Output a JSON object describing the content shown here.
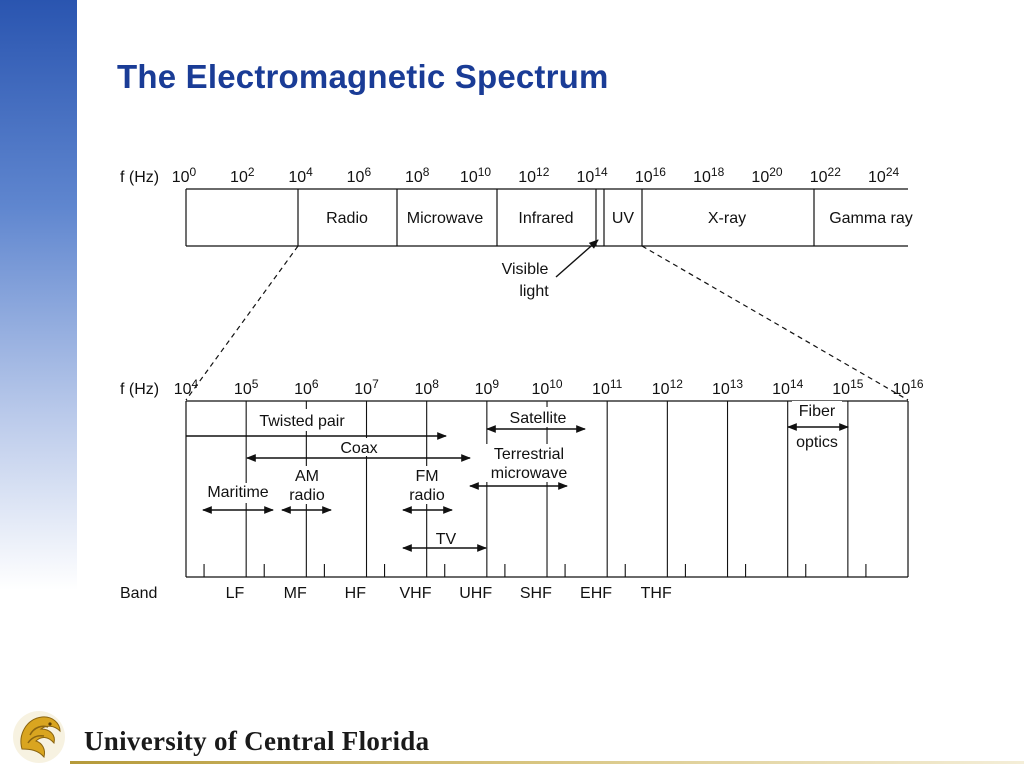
{
  "slide": {
    "title": "The Electromagnetic Spectrum"
  },
  "footer": {
    "institution": "University of Central Florida",
    "logo_icon": "pegasus-logo-icon"
  },
  "colors": {
    "title": "#1a3c96",
    "sidebar_top": "#2a55b0",
    "footer_rule": "#b59a3a",
    "logo_gold": "#d9a520"
  },
  "upper_scale": {
    "axis_label": "f (Hz)",
    "exponents": [
      "0",
      "2",
      "4",
      "6",
      "8",
      "10",
      "12",
      "14",
      "16",
      "18",
      "20",
      "22",
      "24"
    ],
    "regions": [
      "Radio",
      "Microwave",
      "Infrared",
      "UV",
      "X-ray",
      "Gamma ray"
    ],
    "visible_label_line1": "Visible",
    "visible_label_line2": "light"
  },
  "lower_scale": {
    "axis_label": "f (Hz)",
    "exponents": [
      "4",
      "5",
      "6",
      "7",
      "8",
      "9",
      "10",
      "11",
      "12",
      "13",
      "14",
      "15",
      "16"
    ],
    "media": {
      "twisted_pair": "Twisted pair",
      "coax": "Coax",
      "satellite": "Satellite",
      "terrestrial_line1": "Terrestrial",
      "terrestrial_line2": "microwave",
      "fiber_line1": "Fiber",
      "fiber_line2": "optics",
      "maritime": "Maritime",
      "am_line1": "AM",
      "am_line2": "radio",
      "fm_line1": "FM",
      "fm_line2": "radio",
      "tv": "TV"
    },
    "band_label": "Band",
    "bands": [
      "LF",
      "MF",
      "HF",
      "VHF",
      "UHF",
      "SHF",
      "EHF",
      "THF"
    ]
  }
}
